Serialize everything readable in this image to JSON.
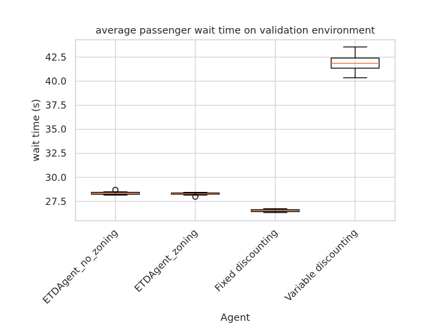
{
  "chart_data": {
    "type": "box",
    "title": "average passenger wait time on validation environment",
    "xlabel": "Agent",
    "ylabel": "wait time (s)",
    "ylim": [
      25.5,
      44.3
    ],
    "yticks": [
      27.5,
      30.0,
      32.5,
      35.0,
      37.5,
      40.0,
      42.5
    ],
    "ytick_labels": [
      "27.5",
      "30.0",
      "32.5",
      "35.0",
      "37.5",
      "40.0",
      "42.5"
    ],
    "grid": true,
    "categories": [
      "ETDAgent_no_zoning",
      "ETDAgent_zoning",
      "Fixed discounting",
      "Variable discounting"
    ],
    "boxes": [
      {
        "whisker_low": 28.15,
        "q1": 28.25,
        "median": 28.35,
        "q3": 28.45,
        "whisker_high": 28.5,
        "outliers": [
          28.7
        ]
      },
      {
        "whisker_low": 28.15,
        "q1": 28.25,
        "median": 28.3,
        "q3": 28.38,
        "whisker_high": 28.45,
        "outliers": [
          28.0
        ]
      },
      {
        "whisker_low": 26.35,
        "q1": 26.45,
        "median": 26.55,
        "q3": 26.65,
        "whisker_high": 26.75,
        "outliers": []
      },
      {
        "whisker_low": 40.35,
        "q1": 41.35,
        "median": 41.85,
        "q3": 42.4,
        "whisker_high": 43.55,
        "outliers": []
      }
    ],
    "colors": {
      "grid": "#cccccc",
      "box": "#000000",
      "median": "#e07b39",
      "axes": "#cccccc",
      "text": "#262626"
    }
  }
}
